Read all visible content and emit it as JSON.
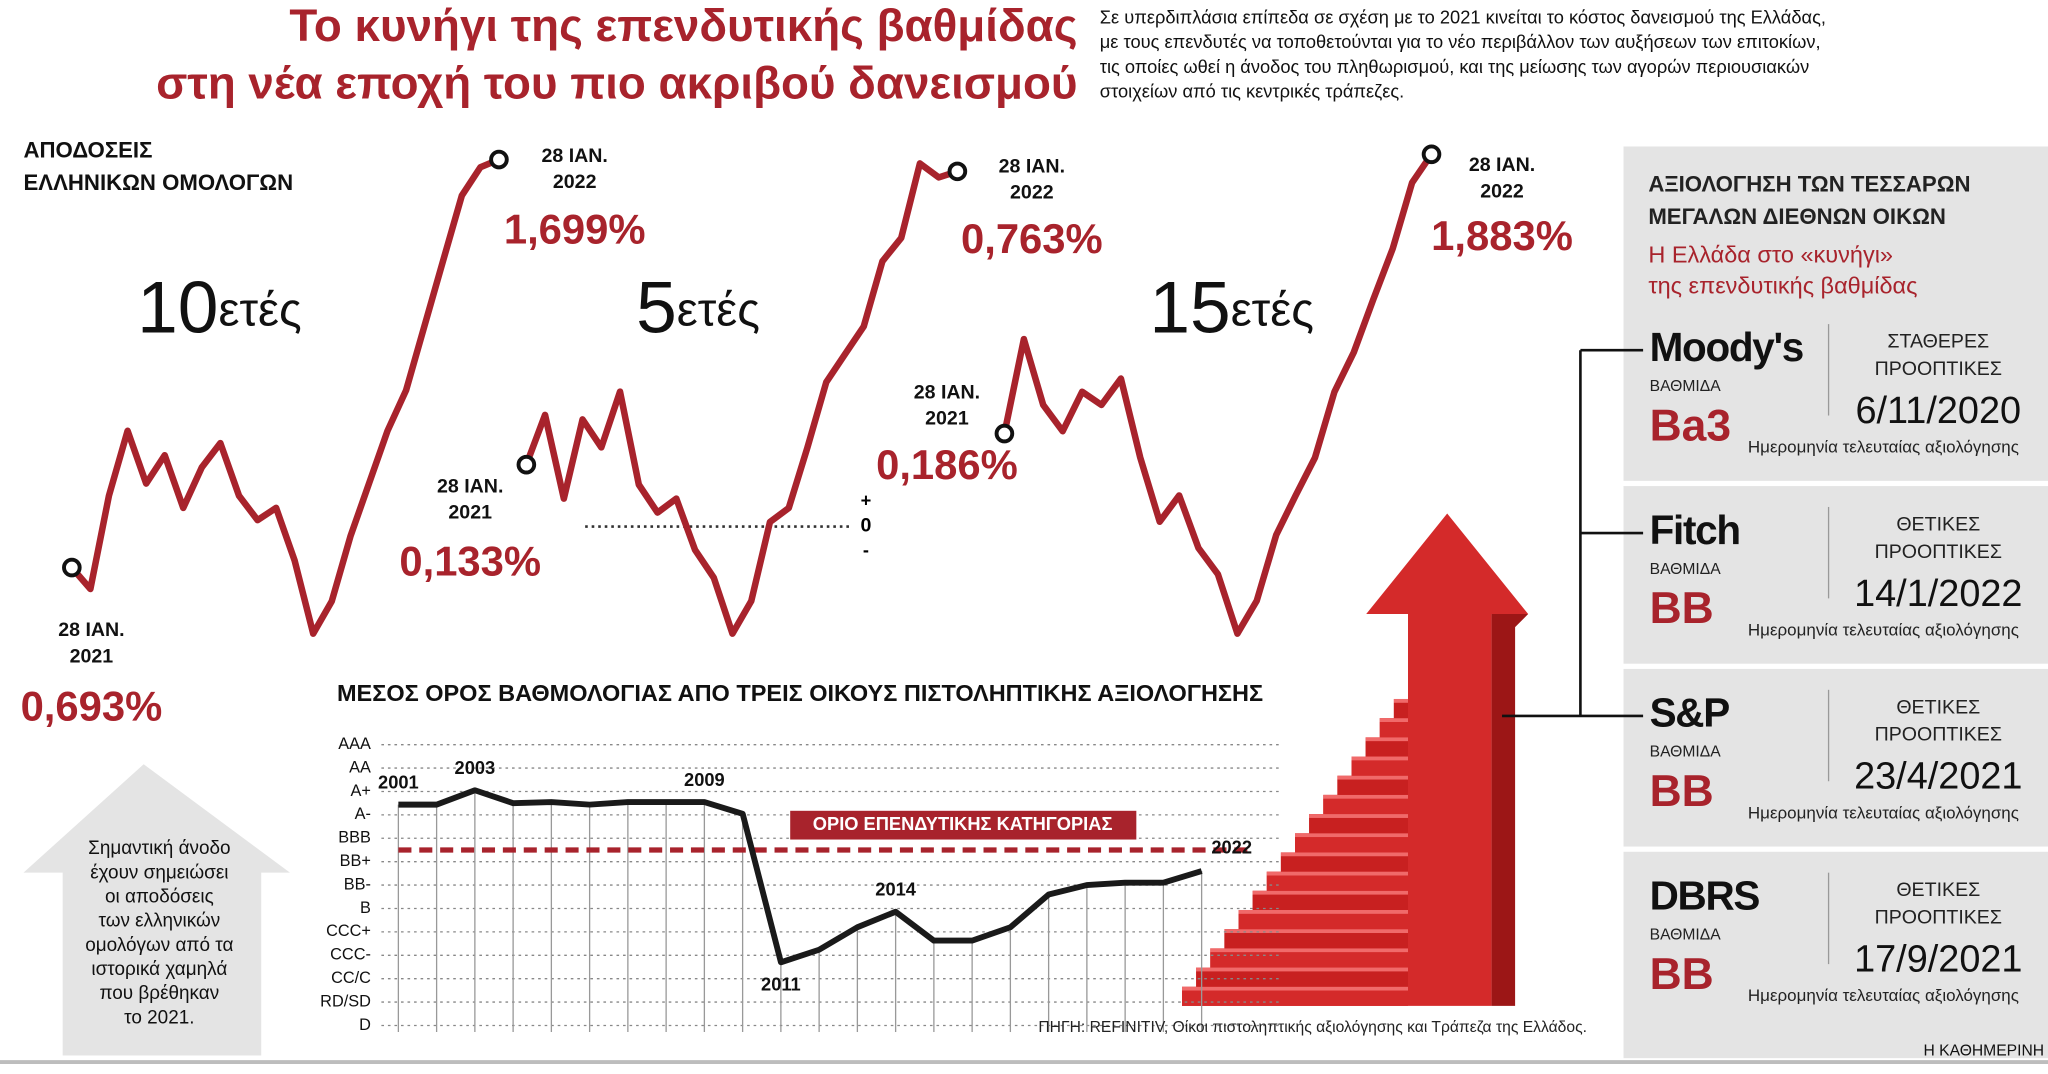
{
  "header": {
    "title": [
      "Το κυνήγι της επενδυτικής βαθμίδας",
      "στη νέα εποχή του πιο ακριβού δανεισμού"
    ],
    "intro": [
      "Σε υπερδιπλάσια επίπεδα σε σχέση με το 2021 κινείται το κόστος δανεισμού της Ελλάδας,",
      "με τους επενδυτές να τοποθετούνται για το νέο περιβάλλον των αυξήσεων των επιτοκίων,",
      "τις οποίες ωθεί η άνοδος του πληθωρισμού, και της μείωσης των αγορών περιουσιακών",
      "στοιχείων από τις κεντρικές τράπεζες."
    ]
  },
  "yields_heading": [
    "ΑΠΟΔΟΣΕΙΣ",
    "ΕΛΛΗΝΙΚΩΝ ΟΜΟΛΟΓΩΝ"
  ],
  "chart_data": [
    {
      "type": "line",
      "name": "10",
      "suffix": "ετές",
      "color": "#a8232c",
      "values": [
        0.693,
        0.64,
        0.87,
        1.03,
        0.9,
        0.97,
        0.84,
        0.94,
        1.0,
        0.87,
        0.81,
        0.84,
        0.71,
        0.53,
        0.61,
        0.77,
        0.9,
        1.03,
        1.13,
        1.29,
        1.45,
        1.61,
        1.68,
        1.699
      ],
      "value_labels": [
        "0,693%",
        null,
        null,
        null,
        null,
        null,
        null,
        null,
        null,
        null,
        null,
        null,
        null,
        null,
        null,
        null,
        null,
        null,
        null,
        null,
        null,
        null,
        null,
        "1,699%"
      ],
      "start_date": [
        "28 ΙΑΝ.",
        "2021"
      ],
      "end_date": [
        "28 ΙΑΝ.",
        "2022"
      ]
    },
    {
      "type": "line",
      "name": "5",
      "suffix": "ετές",
      "color": "#a8232c",
      "values": [
        0.133,
        0.24,
        0.06,
        0.23,
        0.17,
        0.29,
        0.09,
        0.03,
        0.06,
        -0.05,
        -0.11,
        -0.23,
        -0.16,
        0.01,
        0.04,
        0.17,
        0.31,
        0.37,
        0.43,
        0.57,
        0.62,
        0.78,
        0.75,
        0.763
      ],
      "value_labels": [
        "0,133%",
        null,
        null,
        null,
        null,
        null,
        null,
        null,
        null,
        null,
        null,
        null,
        null,
        null,
        null,
        null,
        null,
        null,
        null,
        null,
        null,
        null,
        null,
        "0,763%"
      ],
      "start_date": [
        "28 ΙΑΝ.",
        "2021"
      ],
      "end_date": [
        "28 ΙΑΝ.",
        "2022"
      ],
      "zero_line": {
        "value": 0,
        "label": "0"
      },
      "zero_signs": [
        "+",
        "-"
      ]
    },
    {
      "type": "line",
      "name": "15",
      "suffix": "ετές",
      "color": "#a8232c",
      "values": [
        0.186,
        0.76,
        0.36,
        0.2,
        0.44,
        0.36,
        0.52,
        0.04,
        -0.35,
        -0.19,
        -0.51,
        -0.67,
        -1.03,
        -0.83,
        -0.43,
        -0.19,
        0.04,
        0.44,
        0.68,
        1.0,
        1.31,
        1.71,
        1.883
      ],
      "value_labels": [
        "0,186%",
        null,
        null,
        null,
        null,
        null,
        null,
        null,
        null,
        null,
        null,
        null,
        null,
        null,
        null,
        null,
        null,
        null,
        null,
        null,
        null,
        null,
        "1,883%"
      ],
      "start_date": [
        "28 ΙΑΝ.",
        "2021"
      ],
      "end_date": [
        "28 ΙΑΝ.",
        "2022"
      ]
    },
    {
      "type": "line",
      "title": "ΜΕΣΟΣ ΟΡΟΣ ΒΑΘΜΟΛΟΓΙΑΣ ΑΠΟ ΤΡΕΙΣ ΟΙΚΟΥΣ ΠΙΣΤΟΛΗΠΤΙΚΗΣ ΑΞΙΟΛΟΓΗΣΗΣ",
      "categories": [
        "2001",
        null,
        "2003",
        null,
        null,
        null,
        null,
        null,
        "2009",
        null,
        "2011",
        null,
        null,
        "2014",
        null,
        null,
        null,
        null,
        null,
        null,
        null,
        "2022"
      ],
      "values": [
        9.44,
        9.44,
        10.05,
        9.5,
        9.55,
        9.44,
        9.55,
        9.55,
        9.55,
        9.05,
        2.7,
        3.24,
        4.2,
        4.86,
        3.63,
        3.63,
        4.2,
        5.6,
        6.0,
        6.1,
        6.1,
        6.6
      ],
      "color": "#1a1a1a",
      "ylim": [
        0,
        12
      ],
      "yticks": [
        {
          "value": 0,
          "label": "D"
        },
        {
          "value": 1,
          "label": "RD/SD"
        },
        {
          "value": 2,
          "label": "CC/C"
        },
        {
          "value": 3,
          "label": "CCC-"
        },
        {
          "value": 4,
          "label": "CCC+"
        },
        {
          "value": 5,
          "label": "B"
        },
        {
          "value": 6,
          "label": "BB-"
        },
        {
          "value": 7,
          "label": "BB+"
        },
        {
          "value": 8,
          "label": "BBB"
        },
        {
          "value": 9,
          "label": "A-"
        },
        {
          "value": 10,
          "label": "A+"
        },
        {
          "value": 11,
          "label": "AA"
        },
        {
          "value": 12,
          "label": "AAA"
        }
      ],
      "grid": true,
      "threshold": {
        "value": 7.5,
        "label": "ΟΡΙΟ ΕΠΕΝΔΥΤΙΚΗΣ ΚΑΤΗΓΟΡΙΑΣ",
        "color": "#a8232c"
      },
      "source": "ΠΗΓΗ: REFINITIV, Οίκοι πιστοληπτικής αξιολόγησης και Τράπεζα της Ελλάδος."
    }
  ],
  "ratings_panel": {
    "heading": [
      "ΑΞΙΟΛΟΓΗΣΗ ΤΩΝ ΤΕΣΣΑΡΩΝ",
      "ΜΕΓΑΛΩΝ ΔΙΕΘΝΩΝ ΟΙΚΩΝ"
    ],
    "subheading": [
      "Η Ελλάδα στο «κυνήγι»",
      "της επενδυτικής βαθμίδας"
    ],
    "agencies": [
      {
        "name": "Moody's",
        "rating_label": "ΒΑΘΜΙΔΑ",
        "rating": "Ba3",
        "outlook": [
          "ΣΤΑΘΕΡΕΣ",
          "ΠΡΟΟΠΤΙΚΕΣ"
        ],
        "date": "6/11/2020",
        "date_label": "Ημερομηνία τελευταίας αξιολόγησης"
      },
      {
        "name": "Fitch",
        "rating_label": "ΒΑΘΜΙΔΑ",
        "rating": "BB",
        "outlook": [
          "ΘΕΤΙΚΕΣ",
          "ΠΡΟΟΠΤΙΚΕΣ"
        ],
        "date": "14/1/2022",
        "date_label": "Ημερομηνία τελευταίας αξιολόγησης"
      },
      {
        "name": "S&P",
        "rating_label": "ΒΑΘΜΙΔΑ",
        "rating": "BB",
        "outlook": [
          "ΘΕΤΙΚΕΣ",
          "ΠΡΟΟΠΤΙΚΕΣ"
        ],
        "date": "23/4/2021",
        "date_label": "Ημερομηνία τελευταίας αξιολόγησης"
      },
      {
        "name": "DBRS",
        "rating_label": "ΒΑΘΜΙΔΑ",
        "rating": "BB",
        "outlook": [
          "ΘΕΤΙΚΕΣ",
          "ΠΡΟΟΠΤΙΚΕΣ"
        ],
        "date": "17/9/2021",
        "date_label": "Ημερομηνία τελευταίας αξιολόγησης"
      }
    ]
  },
  "note": [
    "Σημαντική άνοδο",
    "έχουν σημειώσει",
    "οι αποδόσεις",
    "των ελληνικών",
    "ομολόγων από τα",
    "ιστορικά χαμηλά",
    "που βρέθηκαν",
    "το 2021."
  ],
  "brand": "Η ΚΑΘΗΜΕΡΙΝΗ"
}
